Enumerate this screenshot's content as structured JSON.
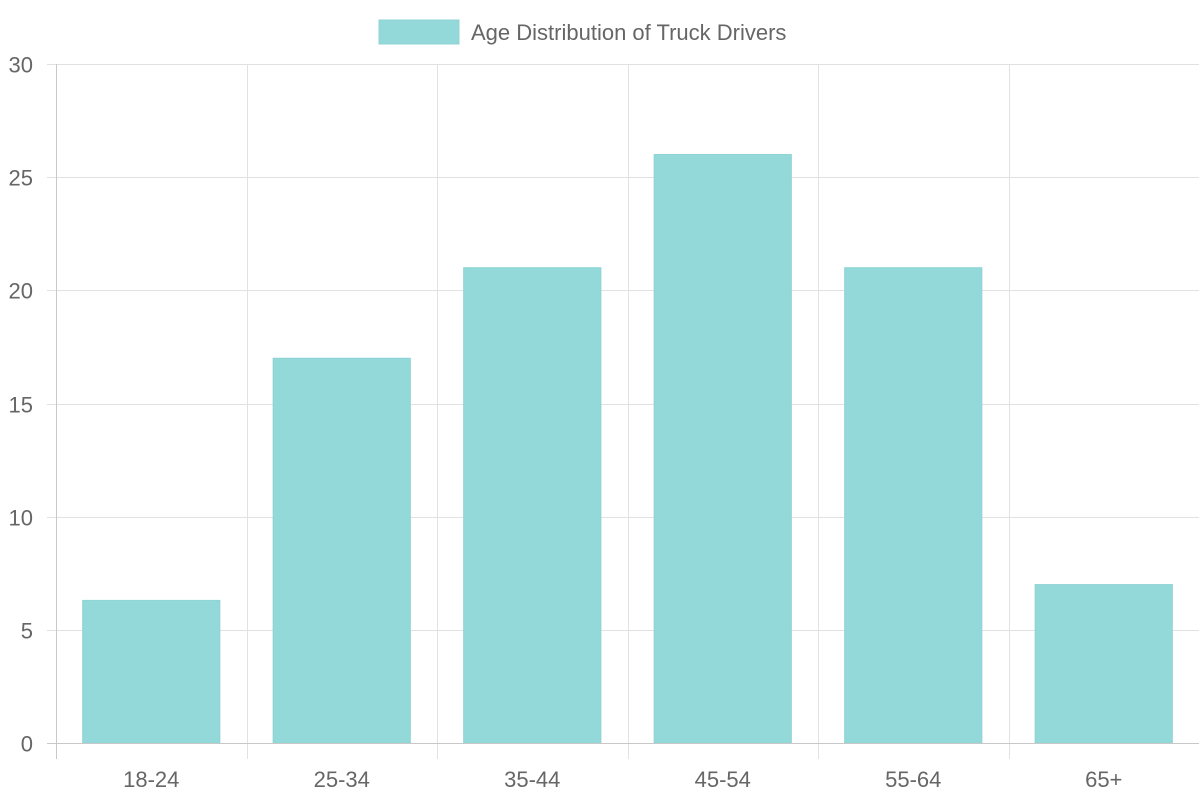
{
  "chart_data": {
    "type": "bar",
    "categories": [
      "18-24",
      "25-34",
      "35-44",
      "45-54",
      "55-64",
      "65+"
    ],
    "series": [
      {
        "name": "Age Distribution of Truck Drivers",
        "values": [
          6.3,
          17,
          21,
          26,
          21,
          7
        ],
        "color": "#94d9da",
        "border_color": "#8fd3d4"
      }
    ],
    "ylim": [
      0,
      30
    ],
    "y_ticks": [
      0,
      5,
      10,
      15,
      20,
      25,
      30
    ],
    "grid": true,
    "legend_position": "top",
    "colors": {
      "grid": "#e1e1e1",
      "axis": "#c8c8c8",
      "tick_text": "#666666",
      "legend_text": "#666666"
    }
  }
}
